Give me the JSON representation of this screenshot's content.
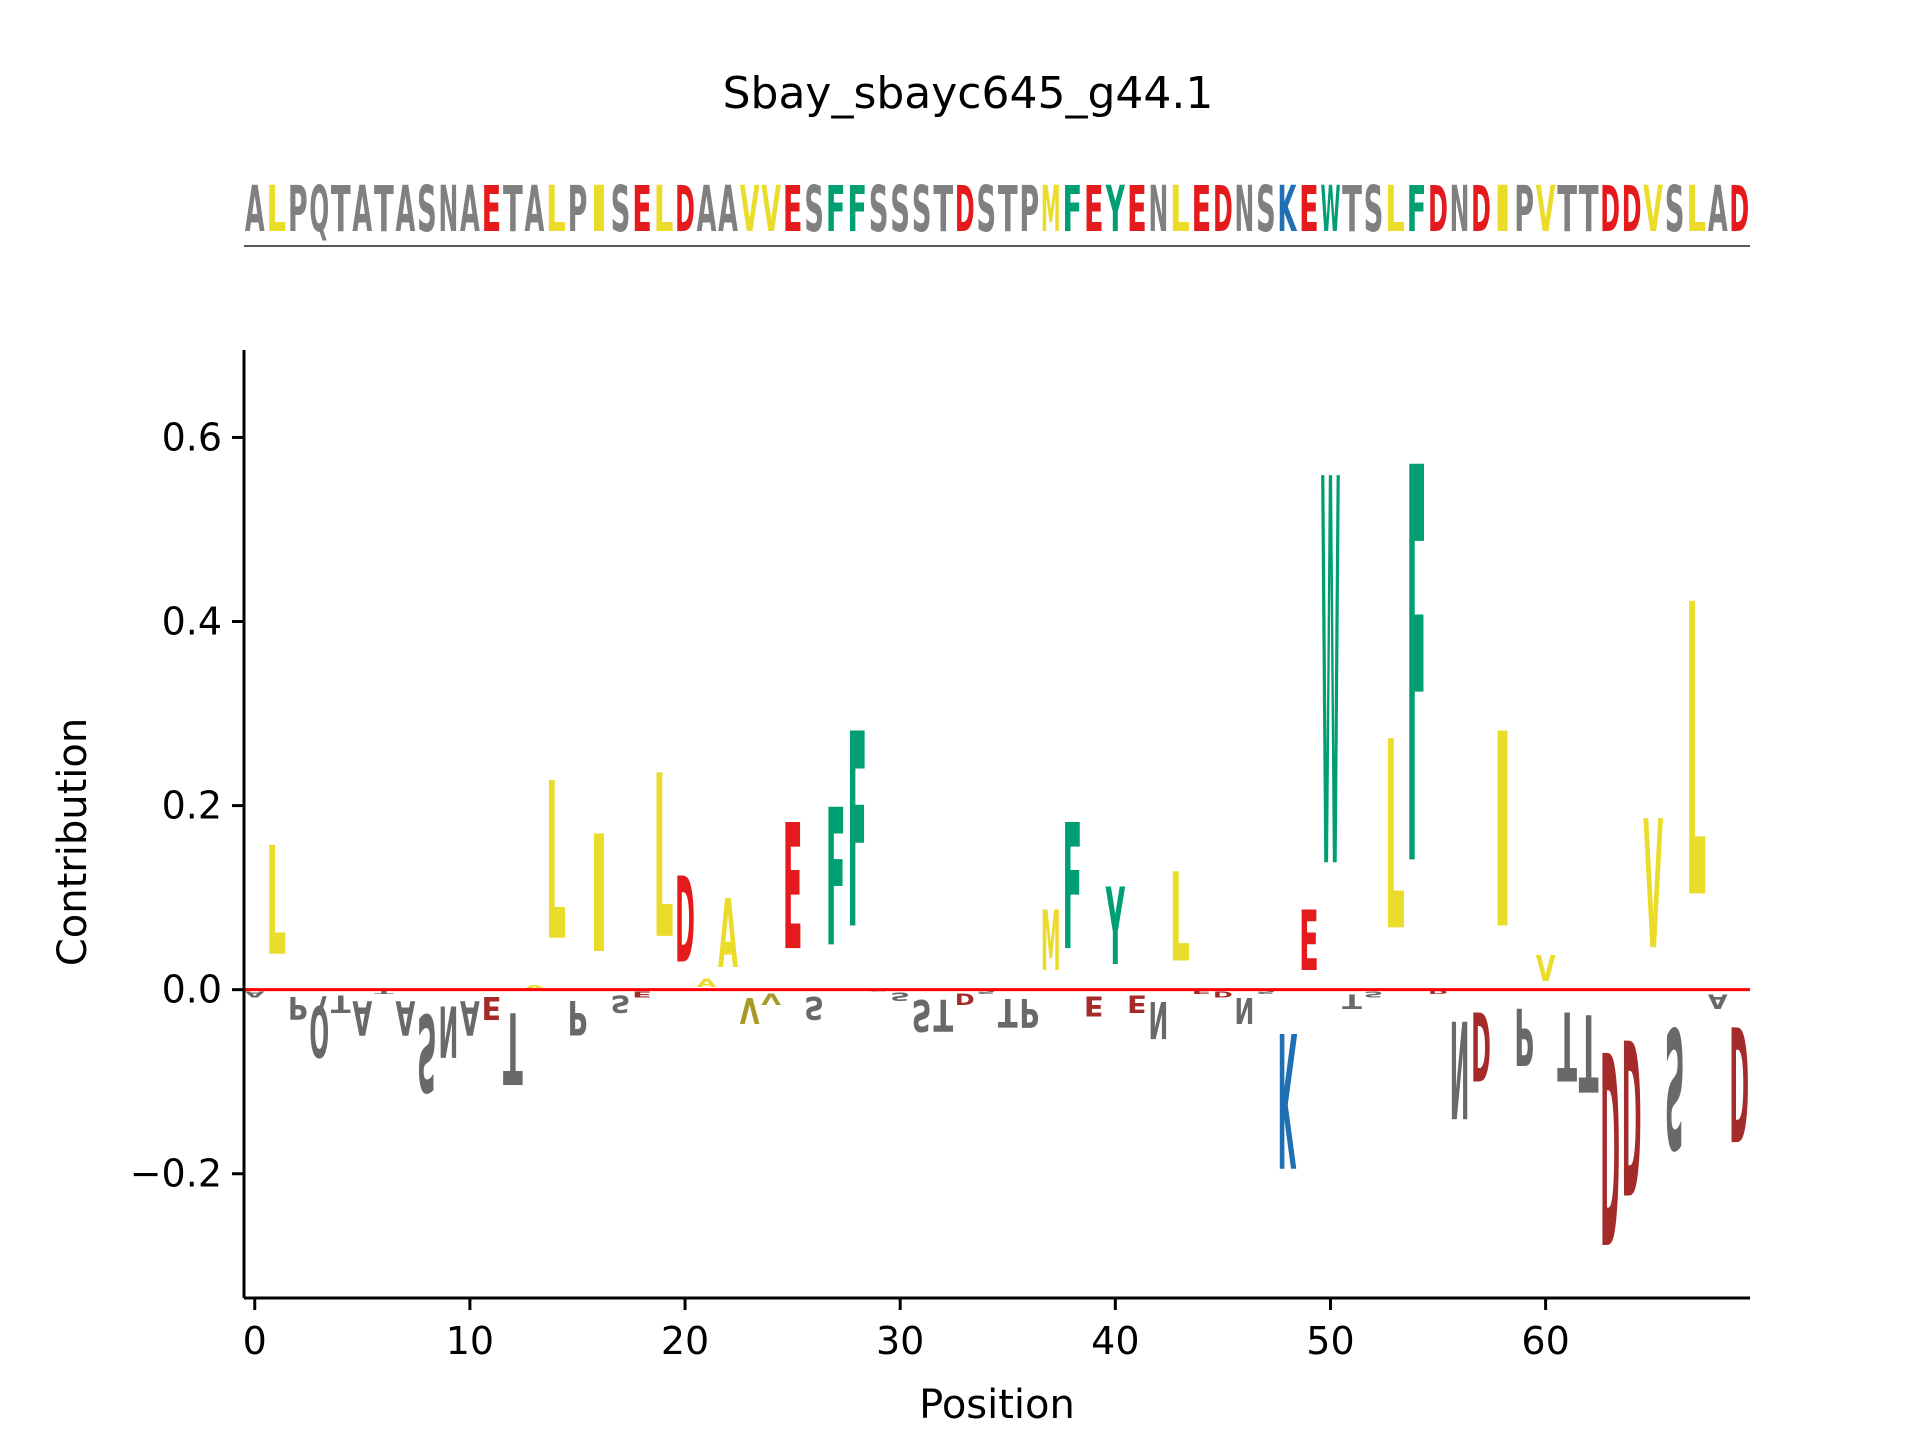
{
  "chart_data": {
    "type": "sequence-logo",
    "title": "Sbay_sbayc645_g44.1",
    "sequence": "ALPQTATASNAETALPISELDAAVVESFFSSSTDSTPMFEYENLEDNSKEWTSLFDNDIPVTTDDVSLAD",
    "xlabel": "Position",
    "ylabel": "Contribution",
    "xlim": [
      -0.5,
      69.5
    ],
    "ylim": [
      -0.335,
      0.695
    ],
    "xticks": [
      0,
      10,
      20,
      30,
      40,
      50,
      60
    ],
    "yticks": [
      -0.2,
      0.0,
      0.2,
      0.4,
      0.6
    ],
    "ytick_labels": [
      "−0.2",
      "0.0",
      "0.2",
      "0.4",
      "0.6"
    ],
    "zero_line_color": "#ff0000",
    "colors": {
      "hydrophobic": "#ebdc2b",
      "acidic": "#e41a1c",
      "acidic_dark": "#a52a2a",
      "aromatic": "#009e73",
      "basic": "#1f6fb4",
      "other": "#808080",
      "other_dark": "#696969",
      "dim_yellow": "#a89a28"
    },
    "contributions": [
      -0.01,
      0.19,
      -0.04,
      -0.09,
      -0.03,
      -0.06,
      -0.005,
      -0.06,
      -0.135,
      -0.09,
      -0.06,
      -0.04,
      -0.125,
      0.005,
      0.275,
      -0.06,
      0.205,
      -0.03,
      -0.01,
      0.285,
      0.15,
      0.015,
      0.12,
      -0.045,
      -0.02,
      0.22,
      -0.04,
      0.24,
      0.34,
      -0.002,
      -0.015,
      -0.055,
      -0.055,
      -0.02,
      -0.005,
      -0.05,
      -0.05,
      0.105,
      0.22,
      -0.035,
      0.135,
      -0.03,
      -0.065,
      0.155,
      -0.005,
      -0.01,
      -0.045,
      -0.005,
      -0.235,
      0.105,
      0.675,
      -0.025,
      -0.01,
      0.33,
      0.69,
      -0.005,
      -0.17,
      -0.12,
      0.34,
      -0.1,
      0.045,
      -0.12,
      -0.135,
      -0.335,
      -0.27,
      0.225,
      -0.21,
      0.51,
      -0.025,
      -0.2
    ]
  }
}
